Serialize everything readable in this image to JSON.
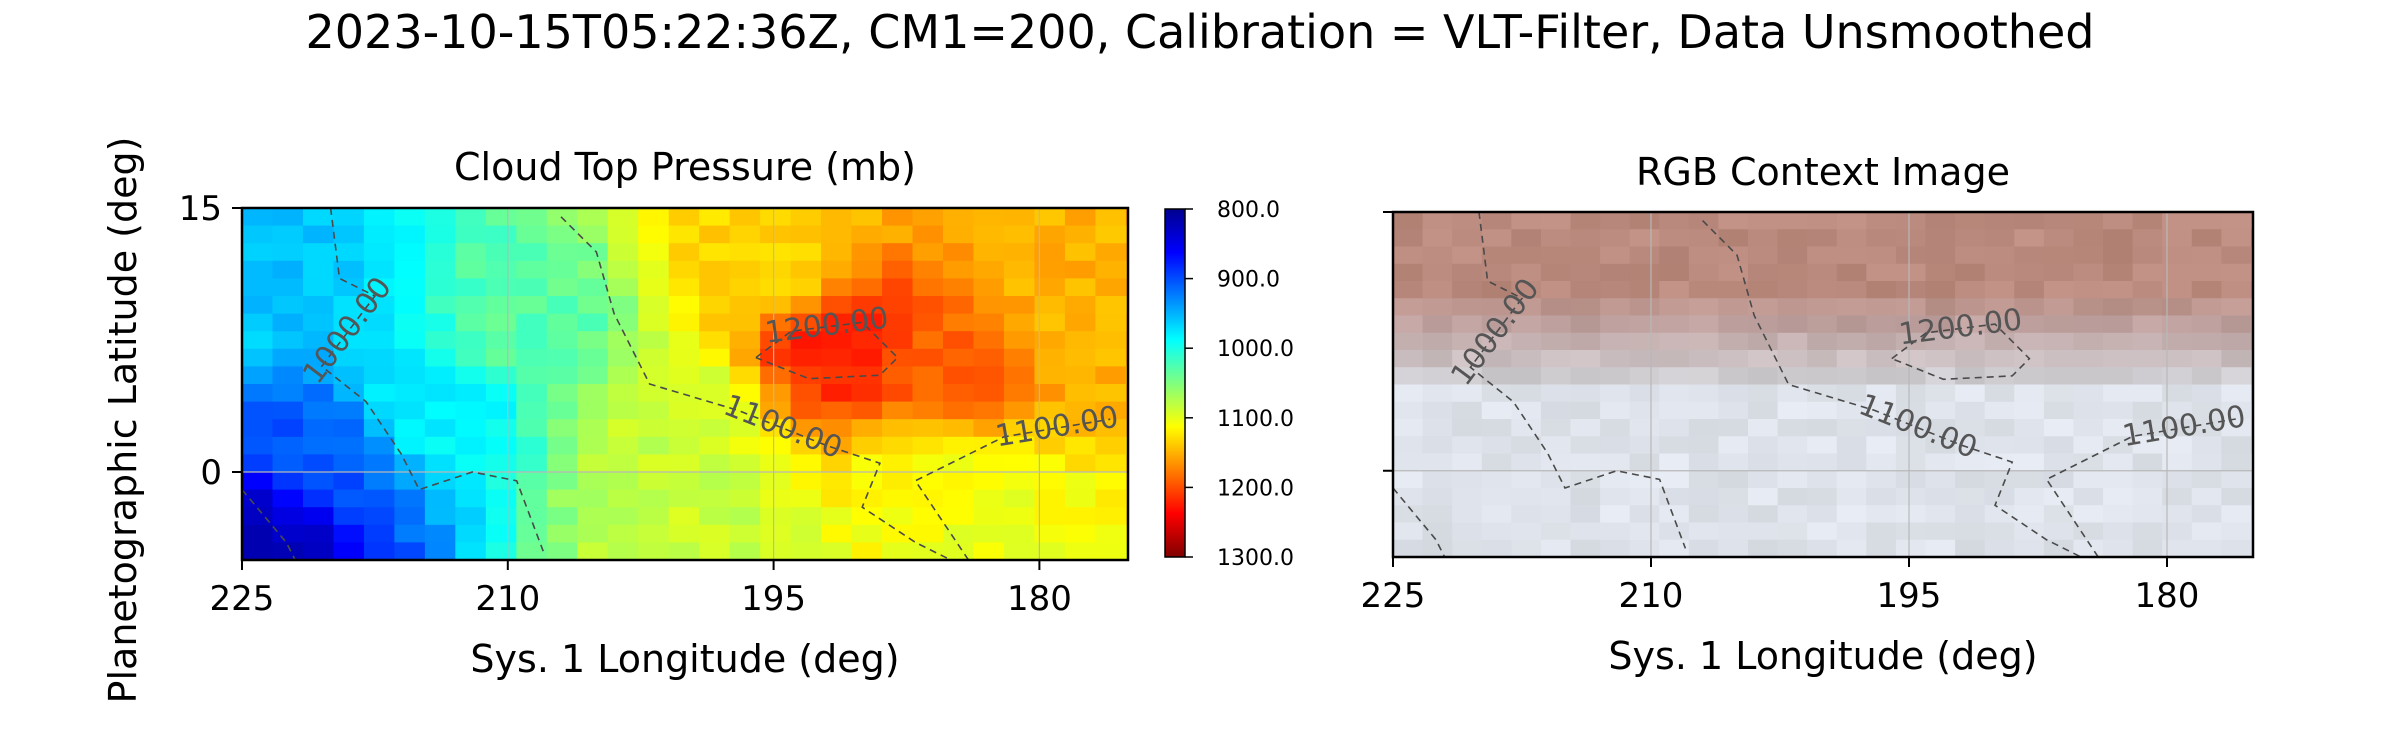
{
  "figure": {
    "suptitle": "2023-10-15T05:22:36Z, CM1=200, Calibration = VLT-Filter, Data Unsmoothed",
    "ylabel": "Planetographic Latitude (deg)"
  },
  "chart_data": [
    {
      "type": "heatmap",
      "title": "Cloud Top Pressure (mb)",
      "xlabel": "Sys. 1 Longitude (deg)",
      "ylabel": "Planetographic Latitude (deg)",
      "xlim": [
        225,
        175
      ],
      "ylim": [
        -5,
        15
      ],
      "xticks": [
        "225",
        "210",
        "195",
        "180"
      ],
      "yticks": [
        "15",
        "0"
      ],
      "grid": true,
      "colormap": "jet",
      "colorbar": {
        "min": 800,
        "max": 1300,
        "ticks": [
          "800.0",
          "900.0",
          "1000.0",
          "1100.0",
          "1200.0",
          "1300.0"
        ]
      },
      "field_anchors": [
        {
          "lon": 224,
          "lat": -3.5,
          "p": 835
        },
        {
          "lon": 221,
          "lat": 1,
          "p": 905
        },
        {
          "lon": 223,
          "lat": 10,
          "p": 960
        },
        {
          "lon": 214,
          "lat": 4,
          "p": 985
        },
        {
          "lon": 209,
          "lat": 8,
          "p": 1030
        },
        {
          "lon": 201,
          "lat": 3,
          "p": 1085
        },
        {
          "lon": 191,
          "lat": 7,
          "p": 1225
        },
        {
          "lon": 186,
          "lat": 5,
          "p": 1190
        },
        {
          "lon": 178,
          "lat": 10,
          "p": 1150
        },
        {
          "lon": 195,
          "lat": 12,
          "p": 1135
        },
        {
          "lon": 199,
          "lat": -3,
          "p": 1085
        },
        {
          "lon": 183,
          "lat": -3,
          "p": 1105
        },
        {
          "lon": 186,
          "lat": 0,
          "p": 1110
        }
      ],
      "contours": [
        {
          "label": "1000.00",
          "points": [
            [
              220,
              15
            ],
            [
              219.5,
              11
            ],
            [
              217.5,
              10
            ],
            [
              220.5,
              6
            ],
            [
              218,
              4
            ],
            [
              216,
              1
            ],
            [
              215,
              -1
            ],
            [
              212,
              0
            ],
            [
              209.5,
              -0.5
            ],
            [
              208,
              -4.5
            ]
          ]
        },
        {
          "label": "1100.00",
          "points": [
            [
              207,
              14.5
            ],
            [
              205,
              12.5
            ],
            [
              204,
              9
            ],
            [
              202,
              5
            ],
            [
              197,
              3.5
            ],
            [
              192,
              1.5
            ],
            [
              189,
              0.5
            ],
            [
              190,
              -2
            ],
            [
              187,
              -4
            ],
            [
              185,
              -5
            ]
          ]
        },
        {
          "label": "1200.00",
          "points": [
            [
              196,
              6.5
            ],
            [
              194,
              8
            ],
            [
              190,
              8.5
            ],
            [
              188,
              6.5
            ],
            [
              189,
              5.5
            ],
            [
              193,
              5.3
            ],
            [
              196,
              6.5
            ]
          ]
        },
        {
          "label": "1100.00",
          "points": [
            [
              184,
              -5
            ],
            [
              187,
              -0.5
            ],
            [
              182,
              2
            ],
            [
              176,
              3
            ]
          ]
        },
        {
          "label": "",
          "points": [
            [
              225,
              -1
            ],
            [
              222.5,
              -4
            ],
            [
              222,
              -5
            ]
          ]
        }
      ]
    },
    {
      "type": "image",
      "title": "RGB Context Image",
      "xlabel": "Sys. 1 Longitude (deg)",
      "xlim": [
        225,
        175
      ],
      "ylim": [
        -5,
        15
      ],
      "xticks": [
        "225",
        "210",
        "195",
        "180"
      ],
      "grid": true,
      "contours": [
        {
          "label": "1000.00",
          "points": [
            [
              220,
              15
            ],
            [
              219.5,
              11
            ],
            [
              217.5,
              10
            ],
            [
              220.5,
              6
            ],
            [
              218,
              4
            ],
            [
              216,
              1
            ],
            [
              215,
              -1
            ],
            [
              212,
              0
            ],
            [
              209.5,
              -0.5
            ],
            [
              208,
              -4.5
            ]
          ]
        },
        {
          "label": "1100.00",
          "points": [
            [
              207,
              14.5
            ],
            [
              205,
              12.5
            ],
            [
              204,
              9
            ],
            [
              202,
              5
            ],
            [
              197,
              3.5
            ],
            [
              192,
              1.5
            ],
            [
              189,
              0.5
            ],
            [
              190,
              -2
            ],
            [
              187,
              -4
            ],
            [
              185,
              -5
            ]
          ]
        },
        {
          "label": "1200.00",
          "points": [
            [
              196,
              6.5
            ],
            [
              194,
              8
            ],
            [
              190,
              8.5
            ],
            [
              188,
              6.5
            ],
            [
              189,
              5.5
            ],
            [
              193,
              5.3
            ],
            [
              196,
              6.5
            ]
          ]
        },
        {
          "label": "1100.00",
          "points": [
            [
              184,
              -5
            ],
            [
              187,
              -0.5
            ],
            [
              182,
              2
            ],
            [
              176,
              3
            ]
          ]
        },
        {
          "label": "",
          "points": [
            [
              225,
              -1
            ],
            [
              222.5,
              -4
            ],
            [
              222,
              -5
            ]
          ]
        }
      ]
    }
  ]
}
